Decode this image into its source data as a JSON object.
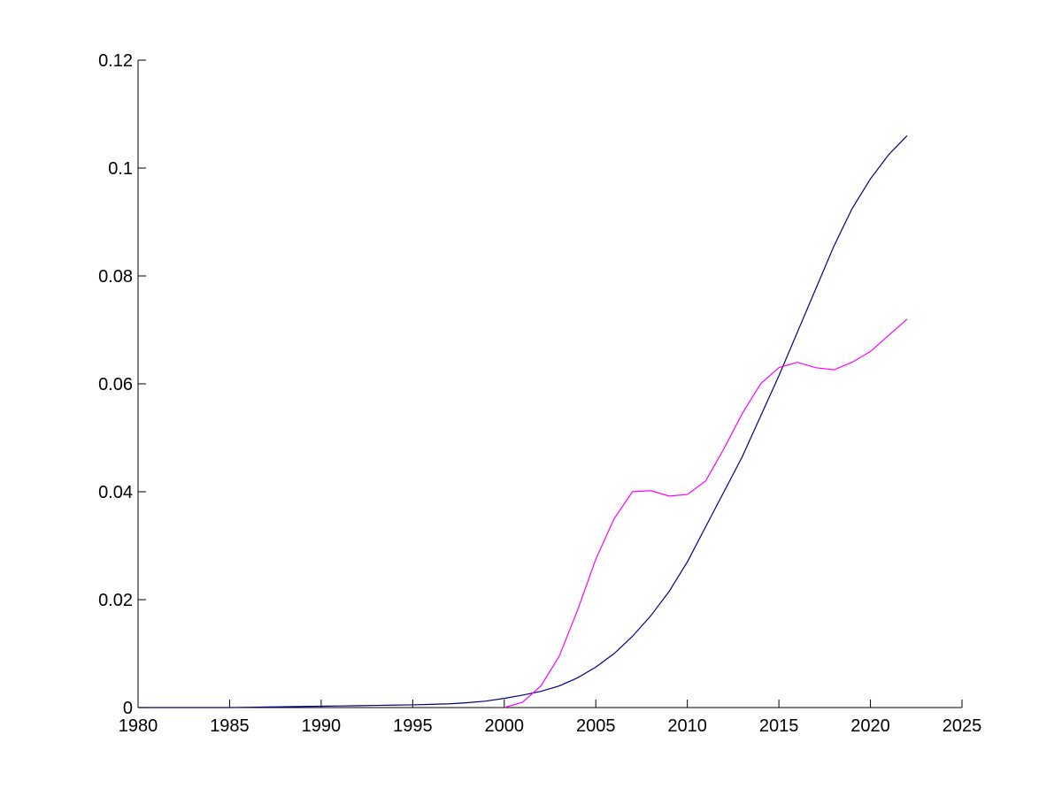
{
  "chart_data": {
    "type": "line",
    "title": "",
    "xlabel": "",
    "ylabel": "",
    "xlim": [
      1980,
      2025
    ],
    "ylim": [
      0,
      0.12
    ],
    "grid": false,
    "legend": "none",
    "x_ticks": [
      "1980",
      "1985",
      "1990",
      "1995",
      "2000",
      "2005",
      "2010",
      "2015",
      "2020",
      "2025"
    ],
    "y_ticks": [
      "0",
      "0.02",
      "0.04",
      "0.06",
      "0.08",
      "0.1",
      "0.12"
    ],
    "x": [
      1980,
      1981,
      1982,
      1983,
      1984,
      1985,
      1986,
      1987,
      1988,
      1989,
      1990,
      1991,
      1992,
      1993,
      1994,
      1995,
      1996,
      1997,
      1998,
      1999,
      2000,
      2001,
      2002,
      2003,
      2004,
      2005,
      2006,
      2007,
      2008,
      2009,
      2010,
      2011,
      2012,
      2013,
      2014,
      2015,
      2016,
      2017,
      2018,
      2019,
      2020,
      2021,
      2022
    ],
    "series": [
      {
        "color": "#000080",
        "values": [
          0,
          0,
          0,
          0,
          0,
          0,
          5e-05,
          0.0001,
          0.00015,
          0.0002,
          0.00025,
          0.0003,
          0.00035,
          0.0004,
          0.00045,
          0.0005,
          0.0006,
          0.0007,
          0.0009,
          0.0012,
          0.0017,
          0.0023,
          0.003,
          0.004,
          0.0055,
          0.0075,
          0.01,
          0.0132,
          0.017,
          0.0215,
          0.027,
          0.0335,
          0.04,
          0.0465,
          0.054,
          0.0615,
          0.0695,
          0.0775,
          0.0855,
          0.0925,
          0.098,
          0.1025,
          0.106
        ]
      },
      {
        "color": "#ff00ff",
        "values": [
          null,
          null,
          null,
          null,
          null,
          null,
          null,
          null,
          null,
          null,
          null,
          null,
          null,
          null,
          null,
          null,
          null,
          null,
          null,
          null,
          0,
          0.001,
          0.004,
          0.0095,
          0.018,
          0.0275,
          0.035,
          0.04,
          0.0402,
          0.0392,
          0.0395,
          0.042,
          0.048,
          0.0545,
          0.06,
          0.063,
          0.064,
          0.063,
          0.0626,
          0.064,
          0.066,
          0.069,
          0.072
        ]
      }
    ]
  }
}
